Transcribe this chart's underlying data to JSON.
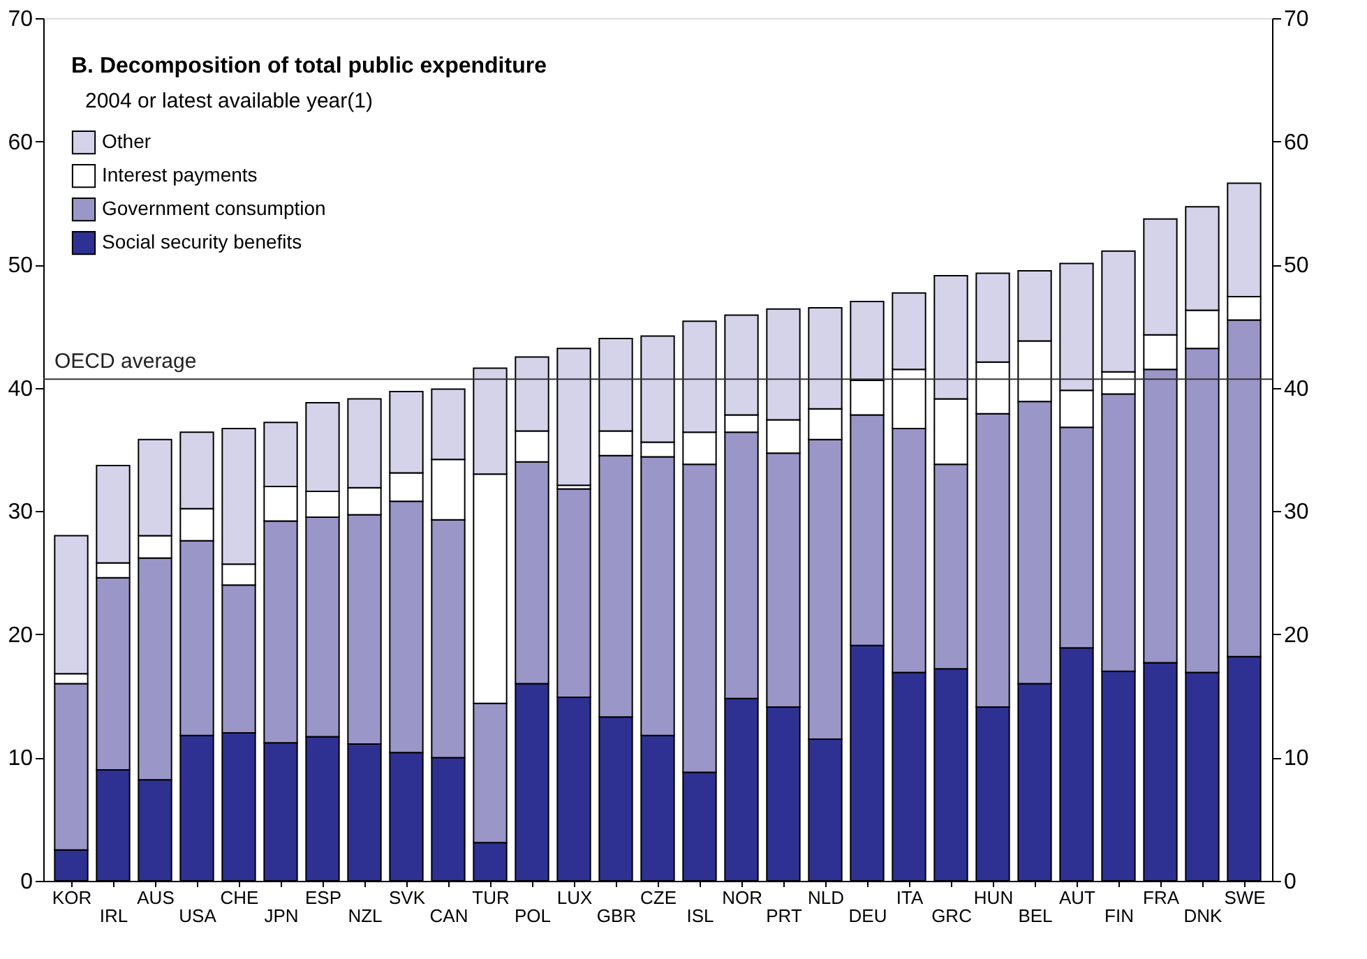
{
  "chart_data": {
    "type": "bar",
    "stacked": true,
    "title": "B. Decomposition of total public expenditure",
    "subtitle": "2004 or latest available year(1)",
    "categories": [
      "KOR",
      "IRL",
      "AUS",
      "USA",
      "CHE",
      "JPN",
      "ESP",
      "NZL",
      "SVK",
      "CAN",
      "TUR",
      "POL",
      "LUX",
      "GBR",
      "CZE",
      "ISL",
      "NOR",
      "PRT",
      "NLD",
      "DEU",
      "ITA",
      "GRC",
      "HUN",
      "BEL",
      "AUT",
      "FIN",
      "FRA",
      "DNK",
      "SWE"
    ],
    "series": [
      {
        "name": "Social security benefits",
        "color": "#2e3192",
        "values": [
          2.5,
          9,
          8.2,
          11.8,
          12,
          11.2,
          11.7,
          11.1,
          10.4,
          10,
          3.1,
          16,
          14.9,
          13.3,
          11.8,
          8.8,
          14.8,
          14.1,
          11.5,
          19.1,
          16.9,
          17.2,
          14.1,
          16,
          18.9,
          17,
          17.7,
          16.9,
          18.2
        ]
      },
      {
        "name": "Government consumption",
        "color": "#9b96c8",
        "values": [
          13.5,
          15.6,
          18,
          15.8,
          12,
          18,
          17.8,
          18.6,
          20.4,
          19.3,
          11.3,
          18,
          16.9,
          21.2,
          22.6,
          25,
          21.6,
          20.6,
          24.3,
          18.7,
          19.8,
          16.6,
          23.8,
          22.9,
          17.9,
          22.5,
          23.8,
          26.3,
          27.3
        ]
      },
      {
        "name": "Interest payments",
        "color": "#ffffff",
        "values": [
          0.8,
          1.2,
          1.8,
          2.6,
          1.7,
          2.8,
          2.1,
          2.2,
          2.3,
          4.9,
          18.6,
          2.5,
          0.3,
          2,
          1.2,
          2.6,
          1.4,
          2.7,
          2.5,
          2.8,
          4.8,
          5.3,
          4.2,
          4.9,
          3,
          1.8,
          2.8,
          3.1,
          1.9
        ]
      },
      {
        "name": "Other",
        "color": "#d5d3ea",
        "values": [
          11.2,
          7.9,
          7.8,
          6.2,
          11,
          5.2,
          7.2,
          7.2,
          6.6,
          5.7,
          8.6,
          6,
          11.1,
          7.5,
          8.6,
          9,
          8.1,
          9,
          8.2,
          6.4,
          6.2,
          10,
          7.2,
          5.7,
          10.3,
          9.8,
          9.4,
          8.4,
          9.2
        ]
      }
    ],
    "ylim": [
      0,
      70
    ],
    "yticks": [
      0,
      10,
      20,
      30,
      40,
      50,
      60,
      70
    ],
    "y2lim": [
      0,
      70
    ],
    "y2ticks": [
      0,
      10,
      20,
      30,
      40,
      50,
      60,
      70
    ],
    "ref_lines": [
      {
        "axis": "y",
        "value": 40.7,
        "label": "OECD average",
        "color": "#333333"
      }
    ],
    "legend": "top left",
    "grid": false
  }
}
